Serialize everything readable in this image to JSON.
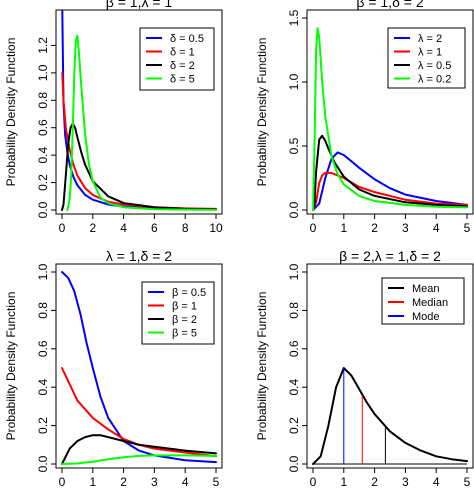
{
  "chart_data": [
    {
      "type": "line",
      "title": "β = 1,λ = 1",
      "xlabel": "",
      "ylabel": "Probability Density Function",
      "xlim": [
        0,
        10
      ],
      "ylim": [
        0,
        1.4
      ],
      "xticks": [
        "0",
        "2",
        "4",
        "6",
        "8",
        "10"
      ],
      "yticks": [
        "0.0",
        "0.2",
        "0.4",
        "0.6",
        "0.8",
        "1.0",
        "1.2"
      ],
      "legend_position": "top-right",
      "grid": false,
      "series": [
        {
          "name": "δ = 0.5",
          "color": "#0000ff",
          "x": [
            0.02,
            0.1,
            0.2,
            0.35,
            0.5,
            0.75,
            1,
            1.5,
            2,
            3,
            4,
            6,
            8,
            10
          ],
          "values": [
            1.45,
            0.78,
            0.55,
            0.42,
            0.33,
            0.24,
            0.18,
            0.11,
            0.075,
            0.04,
            0.025,
            0.012,
            0.007,
            0.005
          ]
        },
        {
          "name": "δ = 1",
          "color": "#ff0000",
          "x": [
            0.02,
            0.1,
            0.25,
            0.5,
            0.75,
            1,
            1.5,
            2,
            3,
            4,
            6,
            8,
            10
          ],
          "values": [
            1.0,
            0.8,
            0.6,
            0.44,
            0.33,
            0.25,
            0.16,
            0.11,
            0.06,
            0.04,
            0.02,
            0.012,
            0.008
          ]
        },
        {
          "name": "δ = 2",
          "color": "#000000",
          "x": [
            0,
            0.1,
            0.25,
            0.4,
            0.55,
            0.7,
            0.85,
            1,
            1.25,
            1.5,
            2,
            3,
            4,
            6,
            8,
            10
          ],
          "values": [
            0,
            0.04,
            0.25,
            0.48,
            0.6,
            0.63,
            0.6,
            0.53,
            0.42,
            0.33,
            0.21,
            0.1,
            0.05,
            0.02,
            0.008,
            0.004
          ]
        },
        {
          "name": "δ = 5",
          "color": "#00ff00",
          "x": [
            0.35,
            0.5,
            0.6,
            0.7,
            0.8,
            0.9,
            1,
            1.1,
            1.25,
            1.5,
            1.75,
            2,
            2.5,
            3,
            4,
            6,
            10
          ],
          "values": [
            0,
            0.08,
            0.25,
            0.6,
            1.0,
            1.24,
            1.27,
            1.15,
            0.9,
            0.55,
            0.33,
            0.21,
            0.09,
            0.05,
            0.02,
            0.005,
            0.001
          ]
        }
      ]
    },
    {
      "type": "line",
      "title": "β = 1,δ = 2",
      "xlabel": "",
      "ylabel": "Probability Density Function",
      "xlim": [
        0,
        5
      ],
      "ylim": [
        0,
        1.5
      ],
      "xticks": [
        "0",
        "1",
        "2",
        "3",
        "4",
        "5"
      ],
      "yticks": [
        "0.0",
        "0.5",
        "1.0",
        "1.5"
      ],
      "legend_position": "top-right",
      "grid": false,
      "series": [
        {
          "name": "λ = 2",
          "color": "#0000ff",
          "x": [
            0,
            0.2,
            0.4,
            0.6,
            0.8,
            1.0,
            1.2,
            1.5,
            2,
            2.5,
            3,
            4,
            5
          ],
          "values": [
            0,
            0.05,
            0.25,
            0.4,
            0.45,
            0.43,
            0.39,
            0.33,
            0.24,
            0.17,
            0.12,
            0.07,
            0.04
          ]
        },
        {
          "name": "λ = 1",
          "color": "#ff0000",
          "x": [
            0,
            0.1,
            0.2,
            0.3,
            0.4,
            0.6,
            0.8,
            1,
            1.5,
            2,
            2.5,
            3,
            4,
            5
          ],
          "values": [
            0,
            0.06,
            0.21,
            0.27,
            0.29,
            0.29,
            0.27,
            0.25,
            0.18,
            0.14,
            0.11,
            0.08,
            0.05,
            0.04
          ]
        },
        {
          "name": "λ = 0.5",
          "color": "#000000",
          "x": [
            0,
            0.05,
            0.1,
            0.2,
            0.3,
            0.4,
            0.5,
            0.7,
            1,
            1.5,
            2,
            3,
            4,
            5
          ],
          "values": [
            0,
            0.05,
            0.3,
            0.55,
            0.58,
            0.54,
            0.48,
            0.37,
            0.26,
            0.16,
            0.11,
            0.06,
            0.04,
            0.03
          ]
        },
        {
          "name": "λ = 0.2",
          "color": "#00ff00",
          "x": [
            0,
            0.05,
            0.1,
            0.15,
            0.2,
            0.3,
            0.4,
            0.6,
            0.8,
            1,
            1.5,
            2,
            3,
            4,
            5
          ],
          "values": [
            0,
            0.5,
            1.25,
            1.42,
            1.35,
            1.0,
            0.73,
            0.42,
            0.28,
            0.2,
            0.11,
            0.07,
            0.04,
            0.025,
            0.02
          ]
        }
      ]
    },
    {
      "type": "line",
      "title": "λ = 1,δ = 2",
      "xlabel": "",
      "ylabel": "Probability Density Function",
      "xlim": [
        0,
        5
      ],
      "ylim": [
        0,
        1.0
      ],
      "xticks": [
        "0",
        "1",
        "2",
        "3",
        "4",
        "5"
      ],
      "yticks": [
        "0.0",
        "0.2",
        "0.4",
        "0.6",
        "0.8",
        "1.0"
      ],
      "legend_position": "top-right",
      "grid": false,
      "series": [
        {
          "name": "β = 0.5",
          "color": "#0000ff",
          "x": [
            0,
            0.2,
            0.4,
            0.6,
            0.8,
            1,
            1.25,
            1.5,
            2,
            2.5,
            3,
            4,
            5
          ],
          "values": [
            1.0,
            0.97,
            0.9,
            0.78,
            0.63,
            0.5,
            0.35,
            0.24,
            0.12,
            0.07,
            0.045,
            0.02,
            0.01
          ]
        },
        {
          "name": "β = 1",
          "color": "#ff0000",
          "x": [
            0,
            0.5,
            1,
            1.5,
            2,
            2.5,
            3,
            4,
            5
          ],
          "values": [
            0.5,
            0.33,
            0.24,
            0.18,
            0.13,
            0.1,
            0.08,
            0.06,
            0.04
          ]
        },
        {
          "name": "β = 2",
          "color": "#000000",
          "x": [
            0,
            0.25,
            0.5,
            0.75,
            1,
            1.25,
            1.5,
            2,
            2.5,
            3,
            4,
            5
          ],
          "values": [
            0,
            0.08,
            0.12,
            0.14,
            0.15,
            0.15,
            0.14,
            0.12,
            0.1,
            0.09,
            0.07,
            0.055
          ]
        },
        {
          "name": "β = 5",
          "color": "#00ff00",
          "x": [
            0,
            0.5,
            1,
            1.5,
            2,
            2.5,
            3,
            4,
            5
          ],
          "values": [
            0,
            0.003,
            0.012,
            0.025,
            0.035,
            0.042,
            0.045,
            0.045,
            0.042
          ]
        }
      ]
    },
    {
      "type": "line",
      "title": "β = 2,λ = 1,δ = 2",
      "xlabel": "",
      "ylabel": "Probability Density Function",
      "xlim": [
        0,
        5
      ],
      "ylim": [
        0,
        1.0
      ],
      "xticks": [
        "0",
        "1",
        "2",
        "3",
        "4",
        "5"
      ],
      "yticks": [
        "0.0",
        "0.2",
        "0.4",
        "0.6",
        "0.8",
        "1.0"
      ],
      "legend_position": "top-right",
      "grid": false,
      "series": [
        {
          "name": "",
          "color": "#000000",
          "x": [
            0,
            0.25,
            0.5,
            0.75,
            1,
            1.25,
            1.5,
            1.75,
            2,
            2.5,
            3,
            3.5,
            4,
            4.5,
            5
          ],
          "values": [
            0,
            0.04,
            0.2,
            0.4,
            0.5,
            0.46,
            0.39,
            0.32,
            0.26,
            0.17,
            0.11,
            0.07,
            0.04,
            0.025,
            0.015
          ]
        }
      ],
      "vlines": [
        {
          "name": "Mean",
          "color": "#000000",
          "x": 2.35,
          "y": 0.2
        },
        {
          "name": "Median",
          "color": "#ff0000",
          "x": 1.6,
          "y": 0.36
        },
        {
          "name": "Mode",
          "color": "#0000ff",
          "x": 1.0,
          "y": 0.5
        }
      ]
    }
  ]
}
